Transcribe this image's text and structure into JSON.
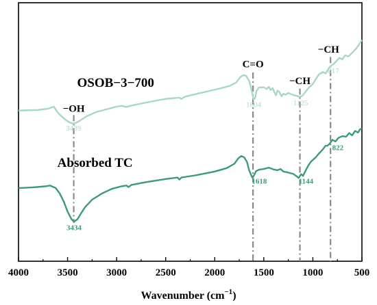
{
  "chart_data": {
    "type": "line",
    "xlabel": "Wavenumber (cm",
    "xlabel_sup": "−1",
    "xlabel_close": ")",
    "xlim": [
      4000,
      500
    ],
    "xticks": [
      "4000",
      "3500",
      "3000",
      "2500",
      "2000",
      "1500",
      "1000",
      "500"
    ],
    "ylabel": "",
    "y_ticks_shown": false,
    "colors": {
      "osob": "#a6d8c6",
      "absorbed": "#3b9a7c",
      "guide": "#8a8a8a",
      "axis": "#000000"
    },
    "series": [
      {
        "key": "osob",
        "name": "OSOB-3-700",
        "color": "#a6d8c6",
        "points": [
          [
            4000,
            0.583
          ],
          [
            3800,
            0.585
          ],
          [
            3700,
            0.59
          ],
          [
            3640,
            0.598
          ],
          [
            3600,
            0.575
          ],
          [
            3560,
            0.56
          ],
          [
            3520,
            0.547
          ],
          [
            3480,
            0.537
          ],
          [
            3439,
            0.532
          ],
          [
            3400,
            0.538
          ],
          [
            3350,
            0.55
          ],
          [
            3300,
            0.562
          ],
          [
            3200,
            0.578
          ],
          [
            3100,
            0.588
          ],
          [
            3000,
            0.598
          ],
          [
            2950,
            0.601
          ],
          [
            2900,
            0.597
          ],
          [
            2850,
            0.602
          ],
          [
            2700,
            0.614
          ],
          [
            2500,
            0.628
          ],
          [
            2360,
            0.633
          ],
          [
            2340,
            0.628
          ],
          [
            2300,
            0.637
          ],
          [
            2100,
            0.655
          ],
          [
            1950,
            0.668
          ],
          [
            1850,
            0.678
          ],
          [
            1780,
            0.692
          ],
          [
            1740,
            0.712
          ],
          [
            1710,
            0.72
          ],
          [
            1680,
            0.717
          ],
          [
            1650,
            0.698
          ],
          [
            1630,
            0.672
          ],
          [
            1615,
            0.645
          ],
          [
            1604,
            0.626
          ],
          [
            1590,
            0.63
          ],
          [
            1575,
            0.658
          ],
          [
            1550,
            0.672
          ],
          [
            1500,
            0.673
          ],
          [
            1470,
            0.666
          ],
          [
            1450,
            0.675
          ],
          [
            1430,
            0.662
          ],
          [
            1410,
            0.67
          ],
          [
            1390,
            0.652
          ],
          [
            1375,
            0.642
          ],
          [
            1360,
            0.66
          ],
          [
            1340,
            0.654
          ],
          [
            1320,
            0.638
          ],
          [
            1300,
            0.648
          ],
          [
            1280,
            0.644
          ],
          [
            1250,
            0.651
          ],
          [
            1200,
            0.643
          ],
          [
            1150,
            0.638
          ],
          [
            1125,
            0.636
          ],
          [
            1100,
            0.643
          ],
          [
            1070,
            0.658
          ],
          [
            1040,
            0.672
          ],
          [
            1000,
            0.686
          ],
          [
            970,
            0.704
          ],
          [
            940,
            0.722
          ],
          [
            900,
            0.732
          ],
          [
            870,
            0.726
          ],
          [
            840,
            0.745
          ],
          [
            817,
            0.756
          ],
          [
            790,
            0.762
          ],
          [
            760,
            0.774
          ],
          [
            730,
            0.787
          ],
          [
            700,
            0.781
          ],
          [
            670,
            0.797
          ],
          [
            640,
            0.792
          ],
          [
            600,
            0.806
          ],
          [
            560,
            0.822
          ],
          [
            530,
            0.838
          ],
          [
            500,
            0.856
          ]
        ]
      },
      {
        "key": "absorbed",
        "name": "Absorbed TC",
        "color": "#3b9a7c",
        "points": [
          [
            4000,
            0.283
          ],
          [
            3850,
            0.286
          ],
          [
            3720,
            0.29
          ],
          [
            3680,
            0.293
          ],
          [
            3620,
            0.283
          ],
          [
            3580,
            0.262
          ],
          [
            3540,
            0.232
          ],
          [
            3500,
            0.192
          ],
          [
            3460,
            0.163
          ],
          [
            3434,
            0.153
          ],
          [
            3400,
            0.162
          ],
          [
            3360,
            0.187
          ],
          [
            3320,
            0.21
          ],
          [
            3250,
            0.238
          ],
          [
            3150,
            0.262
          ],
          [
            3050,
            0.28
          ],
          [
            2950,
            0.29
          ],
          [
            2900,
            0.293
          ],
          [
            2880,
            0.287
          ],
          [
            2850,
            0.295
          ],
          [
            2700,
            0.306
          ],
          [
            2500,
            0.318
          ],
          [
            2380,
            0.324
          ],
          [
            2360,
            0.316
          ],
          [
            2340,
            0.324
          ],
          [
            2200,
            0.332
          ],
          [
            2000,
            0.347
          ],
          [
            1880,
            0.36
          ],
          [
            1800,
            0.377
          ],
          [
            1760,
            0.398
          ],
          [
            1730,
            0.407
          ],
          [
            1700,
            0.402
          ],
          [
            1670,
            0.383
          ],
          [
            1650,
            0.352
          ],
          [
            1625,
            0.33
          ],
          [
            1618,
            0.324
          ],
          [
            1600,
            0.332
          ],
          [
            1580,
            0.348
          ],
          [
            1550,
            0.354
          ],
          [
            1500,
            0.357
          ],
          [
            1450,
            0.362
          ],
          [
            1400,
            0.355
          ],
          [
            1360,
            0.352
          ],
          [
            1330,
            0.357
          ],
          [
            1300,
            0.347
          ],
          [
            1250,
            0.343
          ],
          [
            1200,
            0.338
          ],
          [
            1160,
            0.327
          ],
          [
            1144,
            0.322
          ],
          [
            1120,
            0.337
          ],
          [
            1100,
            0.33
          ],
          [
            1080,
            0.346
          ],
          [
            1050,
            0.368
          ],
          [
            1020,
            0.385
          ],
          [
            1000,
            0.392
          ],
          [
            970,
            0.402
          ],
          [
            940,
            0.416
          ],
          [
            900,
            0.432
          ],
          [
            870,
            0.447
          ],
          [
            850,
            0.447
          ],
          [
            822,
            0.458
          ],
          [
            800,
            0.47
          ],
          [
            770,
            0.463
          ],
          [
            740,
            0.477
          ],
          [
            700,
            0.484
          ],
          [
            660,
            0.482
          ],
          [
            630,
            0.496
          ],
          [
            600,
            0.487
          ],
          [
            570,
            0.504
          ],
          [
            540,
            0.498
          ],
          [
            520,
            0.51
          ],
          [
            500,
            0.515
          ]
        ]
      }
    ],
    "series_labels": [
      {
        "series": "osob",
        "text": "OSOB−3−700",
        "x": 3010,
        "y": 0.675
      },
      {
        "series": "absorbed",
        "text": "Absorbed TC",
        "x": 3220,
        "y": 0.365
      }
    ],
    "band_guides": [
      {
        "label": "−OH",
        "x": 3437,
        "y_top": 0.565,
        "y_bottom": 0.148,
        "label_x": 3437,
        "label_y": 0.578
      },
      {
        "label": "C=O",
        "x": 1610,
        "y_top": 0.73,
        "y_bottom": 0.0,
        "label_x": 1610,
        "label_y": 0.75
      },
      {
        "label": "−CH",
        "x": 1132,
        "y_top": 0.668,
        "y_bottom": 0.0,
        "label_x": 1132,
        "label_y": 0.685
      },
      {
        "label": "−CH",
        "x": 820,
        "y_top": 0.79,
        "y_bottom": 0.0,
        "label_x": 840,
        "label_y": 0.807
      }
    ],
    "peak_labels": [
      {
        "series": "osob",
        "text": "3439",
        "x": 3439,
        "y": 0.505,
        "bold": false
      },
      {
        "series": "osob",
        "text": "1604",
        "x": 1604,
        "y": 0.597,
        "bold": false
      },
      {
        "series": "osob",
        "text": "1125",
        "x": 1125,
        "y": 0.603,
        "bold": false
      },
      {
        "series": "osob",
        "text": "817",
        "x": 790,
        "y": 0.728,
        "bold": false
      },
      {
        "series": "absorbed",
        "text": "3434",
        "x": 3434,
        "y": 0.12,
        "bold": true
      },
      {
        "series": "absorbed",
        "text": "1618",
        "x": 1545,
        "y": 0.3,
        "bold": true
      },
      {
        "series": "absorbed",
        "text": "1144",
        "x": 1070,
        "y": 0.3,
        "bold": true
      },
      {
        "series": "absorbed",
        "text": "822",
        "x": 745,
        "y": 0.43,
        "bold": true
      }
    ],
    "ylim": [
      0,
      1
    ],
    "grid": false,
    "legend": "none (inline series labels)"
  }
}
